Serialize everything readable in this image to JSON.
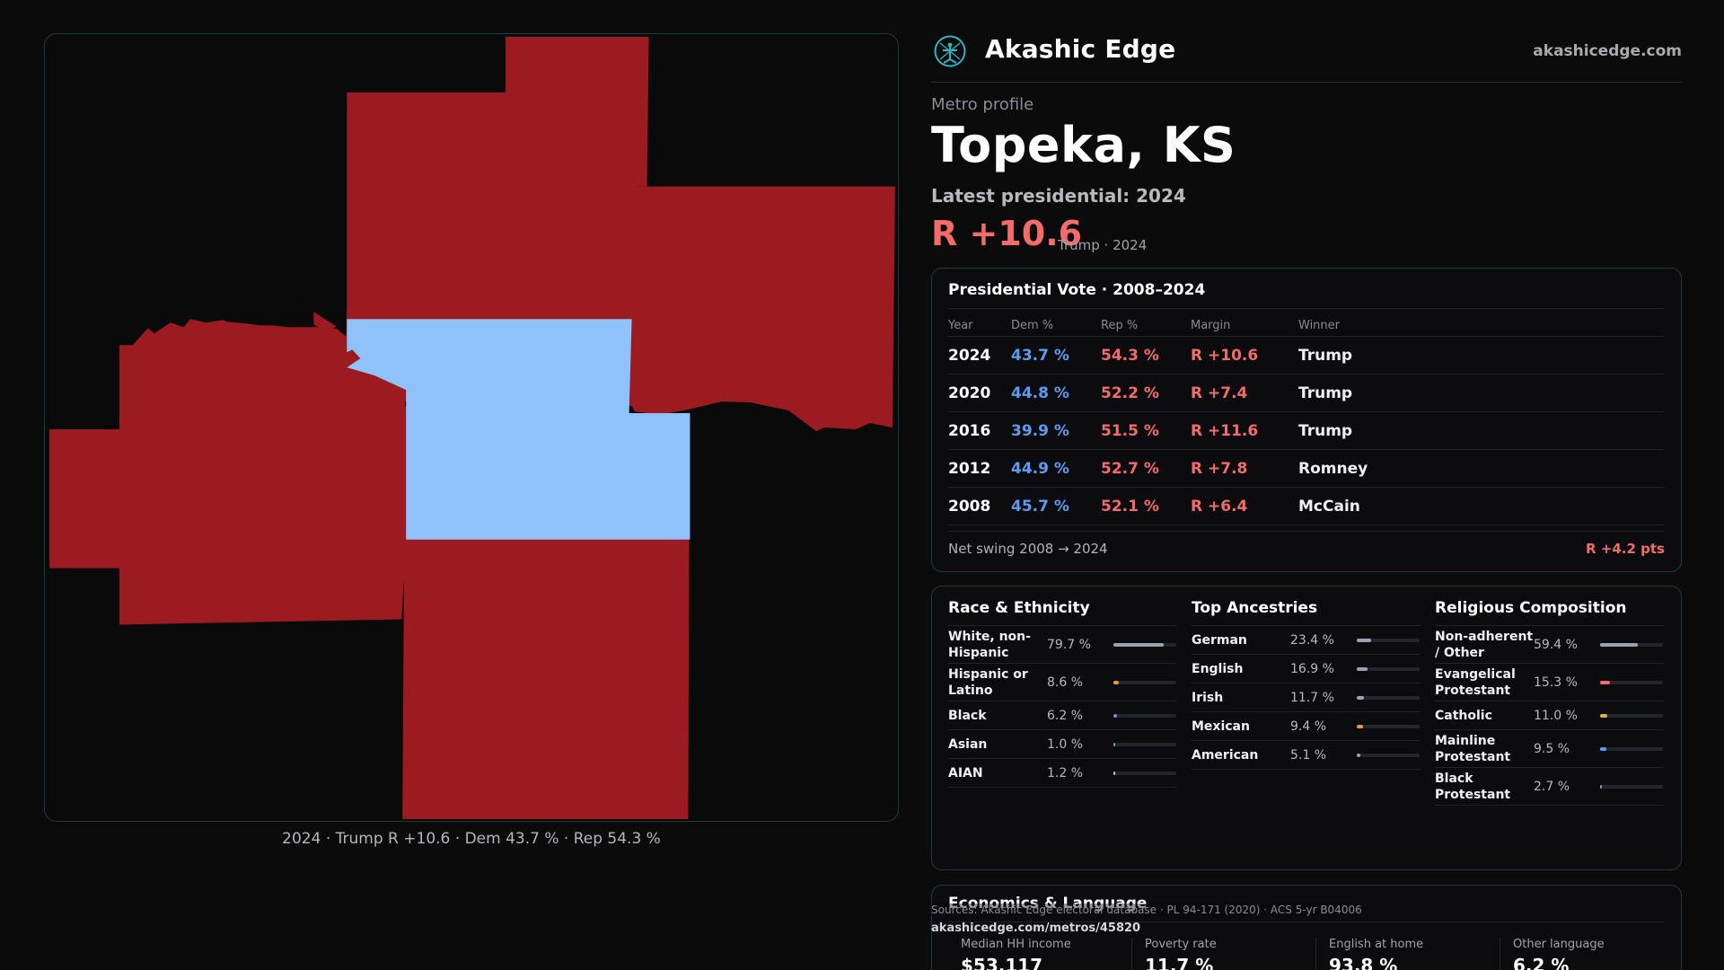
{
  "map": {
    "caption": "2024 · Trump R +10.6 · Dem 43.7 % · Rep 54.3 %",
    "colors": {
      "rep": "#9c1b20",
      "dem": "#8fc1fb",
      "background": "#0a0a0b"
    }
  },
  "brand": {
    "name": "Akashic Edge",
    "url": "akashicedge.com",
    "logo_icon": "akashic-edge-logo-icon",
    "accent": "#2fb6c4"
  },
  "profile": {
    "eyebrow": "Metro profile",
    "title": "Topeka, KS",
    "latest": "Latest presidential: 2024",
    "margin": "R +10.6",
    "margin_sub": "Trump · 2024"
  },
  "vote": {
    "title": "Presidential Vote · 2008–2024",
    "headers": {
      "year": "Year",
      "dem": "Dem %",
      "rep": "Rep %",
      "margin": "Margin",
      "winner": "Winner"
    },
    "rows": [
      {
        "year": "2024",
        "dem": "43.7 %",
        "rep": "54.3 %",
        "margin": "R +10.6",
        "winner": "Trump"
      },
      {
        "year": "2020",
        "dem": "44.8 %",
        "rep": "52.2 %",
        "margin": "R +7.4",
        "winner": "Trump"
      },
      {
        "year": "2016",
        "dem": "39.9 %",
        "rep": "51.5 %",
        "margin": "R +11.6",
        "winner": "Trump"
      },
      {
        "year": "2012",
        "dem": "44.9 %",
        "rep": "52.7 %",
        "margin": "R +7.8",
        "winner": "Romney"
      },
      {
        "year": "2008",
        "dem": "45.7 %",
        "rep": "52.1 %",
        "margin": "R +6.4",
        "winner": "McCain"
      }
    ],
    "swing_label": "Net swing 2008 → 2024",
    "swing_value": "R +4.2 pts"
  },
  "race": {
    "title": "Race & Ethnicity",
    "items": [
      {
        "label": "White, non-Hispanic",
        "pct": "79.7 %",
        "value": 79.7,
        "color": "#9aa3b2"
      },
      {
        "label": "Hispanic or Latino",
        "pct": "8.6 %",
        "value": 8.6,
        "color": "#e0a030"
      },
      {
        "label": "Black",
        "pct": "6.2 %",
        "value": 6.2,
        "color": "#8f7be8"
      },
      {
        "label": "Asian",
        "pct": "1.0 %",
        "value": 1.0,
        "color": "#3fbf8f"
      },
      {
        "label": "AIAN",
        "pct": "1.2 %",
        "value": 1.2,
        "color": "#c0c0c0"
      }
    ]
  },
  "ancestry": {
    "title": "Top Ancestries",
    "items": [
      {
        "label": "German",
        "pct": "23.4 %",
        "value": 23.4,
        "color": "#9aa3b2"
      },
      {
        "label": "English",
        "pct": "16.9 %",
        "value": 16.9,
        "color": "#9aa3b2"
      },
      {
        "label": "Irish",
        "pct": "11.7 %",
        "value": 11.7,
        "color": "#9aa3b2"
      },
      {
        "label": "Mexican",
        "pct": "9.4 %",
        "value": 9.4,
        "color": "#e0a030"
      },
      {
        "label": "American",
        "pct": "5.1 %",
        "value": 5.1,
        "color": "#9aa3b2"
      }
    ]
  },
  "religion": {
    "title": "Religious Composition",
    "items": [
      {
        "label": "Non-adherent / Other",
        "pct": "59.4 %",
        "value": 59.4,
        "color": "#9aa3b2"
      },
      {
        "label": "Evangelical Protestant",
        "pct": "15.3 %",
        "value": 15.3,
        "color": "#f36b6b"
      },
      {
        "label": "Catholic",
        "pct": "11.0 %",
        "value": 11.0,
        "color": "#e0b030"
      },
      {
        "label": "Mainline Protestant",
        "pct": "9.5 %",
        "value": 9.5,
        "color": "#5b9cf2"
      },
      {
        "label": "Black Protestant",
        "pct": "2.7 %",
        "value": 2.7,
        "color": "#8f7be8"
      }
    ]
  },
  "economics": {
    "title": "Economics & Language",
    "cells": [
      {
        "label": "Median HH income",
        "value": "$53,117"
      },
      {
        "label": "Poverty rate",
        "value": "11.7 %"
      },
      {
        "label": "English at home",
        "value": "93.8 %"
      },
      {
        "label": "Other language",
        "value": "6.2 %"
      }
    ]
  },
  "footer": {
    "sources": "Sources: Akashic Edge electoral database · PL 94-171 (2020) · ACS 5-yr B04006",
    "link": "akashicedge.com/metros/45820"
  }
}
